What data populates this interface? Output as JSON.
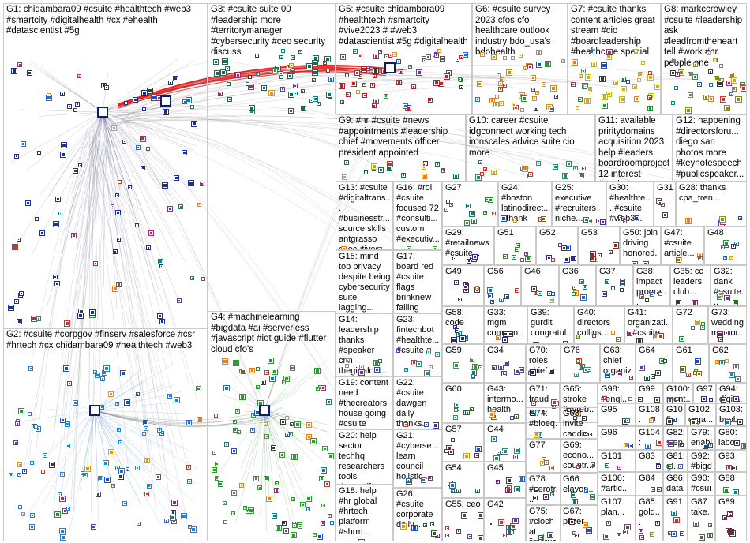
{
  "graph": {
    "groups": [
      {
        "id": "G1",
        "label": "G1: chidambara09 #csuite #healthtech #web3 #smartcity #digitalhealth #cx #ehealth #datascientist #5g",
        "color": "#1f2f8f"
      },
      {
        "id": "G2",
        "label": "G2: #csuite #corpgov #finserv #salesforce #csr #hrtech #cx chidambara09 #healthtech #web3",
        "color": "#2a7fd0"
      },
      {
        "id": "G3",
        "label": "G3: #csuite suite 00 #leadership more #territorymanager #cybersecurity #ceo security discuss",
        "color": "#1a6a55"
      },
      {
        "id": "G4",
        "label": "G4: #machinelearning #bigdata #ai #serverless #javascript #iot guide #flutter cloud cfo's",
        "color": "#2aa02a"
      },
      {
        "id": "G5",
        "label": "G5: #csuite chidambara09 #healthtech #smartcity #vive2023 # #web3 #datascientist #5g #digitalhealth",
        "color": "#c0202a"
      },
      {
        "id": "G6",
        "label": "G6: #csuite survey 2023 cfos cfo healthcare outlook industry bdo_usa's bdohealth",
        "color": "#d08a20"
      },
      {
        "id": "G7",
        "label": "G7: #csuite thanks content articles great stream #cio #boardleadership #healthcare special",
        "color": "#c8b020"
      },
      {
        "id": "G8",
        "label": "G8: markccrowley #csuite #leadership ask #leadfromtheheart tell #work #hr people one",
        "color": "#8a8a20"
      },
      {
        "id": "G9",
        "label": "G9: #hr #csuite #news #appointments #leadership chief #movements officer president appointed",
        "color": "#1a6a55"
      },
      {
        "id": "G10",
        "label": "G10: career #csuite idgconnect working tech ironscales advice suite cio more",
        "color": "#2a8a6a"
      },
      {
        "id": "G11",
        "label": "G11: available priritydomains acquisition 2023 help #leaders boardroomproject 12 interest #csuite",
        "color": "#5a3aa0"
      },
      {
        "id": "G12",
        "label": "G12: happening #directorsforu... diego san photos more #keynotespeech #publicspeaker...",
        "color": "#a02a80"
      },
      {
        "id": "G13",
        "label": "G13: #csuite #digitaltrans... #businesstr... source skills antgrasso executives...",
        "color": "#2a6ab0"
      },
      {
        "id": "G14",
        "label": "G14: leadership thanks #speaker cnn theginalord...",
        "color": "#8a8a8a"
      },
      {
        "id": "G15",
        "label": "G15: mind top privacy despite being cybersecurity suite lagging...",
        "color": "#a03030"
      },
      {
        "id": "G16",
        "label": "G16: #roi #csuite focused 72 #consulti... custom #executiv...",
        "color": "#3a8a3a"
      },
      {
        "id": "G17",
        "label": "G17: board red #csuite flags brinknew failing reveal...",
        "color": "#9a2a2a"
      },
      {
        "id": "G18",
        "label": "G18: help #hr global #hrtech platform #shrm...",
        "color": "#3a5aa0"
      },
      {
        "id": "G19",
        "label": "G19: content need #thecreators house going #csuite mine...",
        "color": "#6a6a2a"
      },
      {
        "id": "G20",
        "label": "G20: help sector techhq researchers tools demystify...",
        "color": "#2a6a8a"
      },
      {
        "id": "G21",
        "label": "G21: #cyberse... learn council holistic...",
        "color": "#8a2a8a"
      },
      {
        "id": "G22",
        "label": "G22: #csuite dawgen daily thanks...",
        "color": "#3a3a8a"
      },
      {
        "id": "G23",
        "label": "G23: fintechbot #healthte... #csuite",
        "color": "#2a8a8a"
      },
      {
        "id": "G24",
        "label": "G24: #boston latinodirect... thank",
        "color": "#8a5a2a"
      },
      {
        "id": "G25",
        "label": "G25: executive #recruiters niche...",
        "color": "#5a2a8a"
      },
      {
        "id": "G26",
        "label": "G26: #csuite corporate daily...",
        "color": "#2a5a2a"
      },
      {
        "id": "G27",
        "label": "G27",
        "color": "#2a8a2a"
      },
      {
        "id": "G28",
        "label": "G28: thanks cpa_tren...",
        "color": "#8a8a2a"
      },
      {
        "id": "G29",
        "label": "G29: #retailnews #csuite...",
        "color": "#2a2a8a"
      },
      {
        "id": "G30",
        "label": "G30: #healthte... #csuite #web3...",
        "color": "#3a3aa0"
      },
      {
        "id": "G31",
        "label": "G31",
        "color": "#6a3a2a"
      },
      {
        "id": "G32",
        "label": "G32: dank #csuite...",
        "color": "#2a6a2a"
      },
      {
        "id": "G33",
        "label": "G33: mgm compan...",
        "color": "#2a2a6a"
      },
      {
        "id": "G34",
        "label": "G34",
        "color": "#4a4aa0"
      },
      {
        "id": "G35",
        "label": "G35: cc leaders club...",
        "color": "#8a2a5a"
      },
      {
        "id": "G36",
        "label": "G36",
        "color": "#2a8a4a"
      },
      {
        "id": "G37",
        "label": "G37",
        "color": "#4a2a8a"
      },
      {
        "id": "G38",
        "label": "G38: impact progra...",
        "color": "#6a6a6a"
      },
      {
        "id": "G39",
        "label": "G39: gurdit congratul... position...",
        "color": "#2a4a8a"
      },
      {
        "id": "G40",
        "label": "G40: directors collins...",
        "color": "#5a8a2a"
      },
      {
        "id": "G41",
        "label": "G41: organizati... #csuite...",
        "color": "#8a4a2a"
      },
      {
        "id": "G42",
        "label": "G42",
        "color": "#2a6a6a"
      },
      {
        "id": "G43",
        "label": "G43: intermo... health",
        "color": "#4a6a2a"
      },
      {
        "id": "G44",
        "label": "G44",
        "color": "#2a8a6a"
      },
      {
        "id": "G45",
        "label": "G45",
        "color": "#6a2a6a"
      },
      {
        "id": "G46",
        "label": "G46",
        "color": "#2a4a6a"
      },
      {
        "id": "G47",
        "label": "G47: #csuite article...",
        "color": "#8a6a2a"
      },
      {
        "id": "G48",
        "label": "G48",
        "color": "#2a6a8a"
      },
      {
        "id": "G49",
        "label": "G49",
        "color": "#4a2a6a"
      },
      {
        "id": "G50",
        "label": "G50: join driving honored...",
        "color": "#6a4a2a"
      },
      {
        "id": "G51",
        "label": "G51",
        "color": "#2a8a2a"
      },
      {
        "id": "G52",
        "label": "G52",
        "color": "#2a2a8a"
      },
      {
        "id": "G53",
        "label": "G53",
        "color": "#8a2a2a"
      },
      {
        "id": "G54",
        "label": "G54",
        "color": "#2a6a4a"
      },
      {
        "id": "G55",
        "label": "G55: ceo",
        "color": "#4a4a4a"
      },
      {
        "id": "G56",
        "label": "G56",
        "color": "#2a4aa0"
      },
      {
        "id": "G57",
        "label": "G57",
        "color": "#6a2a4a"
      },
      {
        "id": "G58",
        "label": "G58: code",
        "color": "#2a2a6a"
      },
      {
        "id": "G59",
        "label": "G59",
        "color": "#4a8a4a"
      },
      {
        "id": "G60",
        "label": "G60",
        "color": "#2a6a2a"
      },
      {
        "id": "G61",
        "label": "G61",
        "color": "#6a6a2a"
      },
      {
        "id": "G62",
        "label": "G62",
        "color": "#2a8a8a"
      },
      {
        "id": "G63",
        "label": "G63: chief organiz...",
        "color": "#8a2a6a"
      },
      {
        "id": "G64",
        "label": "G64",
        "color": "#2a4a4a"
      },
      {
        "id": "G65",
        "label": "G65: stroke #syreb...",
        "color": "#6a2a2a"
      },
      {
        "id": "G66",
        "label": "G66: elavon...",
        "color": "#2a6a6a"
      },
      {
        "id": "G67",
        "label": "G67: pfizer",
        "color": "#4a2a2a"
      },
      {
        "id": "G68",
        "label": "G68: invite caddie...",
        "color": "#2a4a2a"
      },
      {
        "id": "G69",
        "label": "G69: econo... countr...",
        "color": "#6a4a6a"
      },
      {
        "id": "G70",
        "label": "G70: roles chief...",
        "color": "#2a2a4a"
      },
      {
        "id": "G71",
        "label": "G71: fraud",
        "color": "#8a4a4a"
      },
      {
        "id": "G72",
        "label": "G72",
        "color": "#2a8a4a"
      },
      {
        "id": "G73",
        "label": "G73: wedding memor...",
        "color": "#6a2a6a"
      },
      {
        "id": "G74",
        "label": "G74: #bioeq... sanofi...",
        "color": "#2a6a8a"
      },
      {
        "id": "G75",
        "label": "G75: #ciochat jimcrus...",
        "color": "#4a4a8a"
      },
      {
        "id": "G76",
        "label": "G76",
        "color": "#2a8a6a"
      },
      {
        "id": "G77",
        "label": "G77",
        "color": "#8a6a4a"
      },
      {
        "id": "G78",
        "label": "G78: #zerotr...",
        "color": "#4a2a4a"
      },
      {
        "id": "G79",
        "label": "G79: enabl...",
        "color": "#2a4a6a"
      },
      {
        "id": "G80",
        "label": "G80: labor",
        "color": "#6a6a4a"
      },
      {
        "id": "G81",
        "label": "G81: gt...",
        "color": "#2a6a4a"
      },
      {
        "id": "G82",
        "label": "G82: stepp...",
        "color": "#4a2a6a"
      },
      {
        "id": "G83",
        "label": "G83",
        "color": "#2a2a8a"
      },
      {
        "id": "G84",
        "label": "G84",
        "color": "#6a4a2a"
      },
      {
        "id": "G85",
        "label": "G85: gold...",
        "color": "#8a8a2a"
      },
      {
        "id": "G86",
        "label": "G86: data...",
        "color": "#2a4a8a"
      },
      {
        "id": "G87",
        "label": "G87: take...",
        "color": "#4a6a4a"
      },
      {
        "id": "G88",
        "label": "G88",
        "color": "#2a8a2a"
      },
      {
        "id": "G89",
        "label": "G89",
        "color": "#6a2a4a"
      },
      {
        "id": "G90",
        "label": "G90: #csui...",
        "color": "#2a6a6a"
      },
      {
        "id": "G91",
        "label": "G91",
        "color": "#4a4a6a"
      },
      {
        "id": "G92",
        "label": "G92: #bigd...",
        "color": "#6a6a8a"
      },
      {
        "id": "G93",
        "label": "G93",
        "color": "#2a4a2a"
      },
      {
        "id": "G94",
        "label": "G94: digita...",
        "color": "#4a2a8a"
      },
      {
        "id": "G95",
        "label": "G95",
        "color": "#2a6a2a"
      },
      {
        "id": "G96",
        "label": "G96",
        "color": "#6a4a4a"
      },
      {
        "id": "G97",
        "label": "G97",
        "color": "#2a2a6a"
      },
      {
        "id": "G98",
        "label": "G98: #engl...",
        "color": "#4a8a2a"
      },
      {
        "id": "G99",
        "label": "G99",
        "color": "#2a4a4a"
      },
      {
        "id": "G100",
        "label": "G100: mont...",
        "color": "#6a2a2a"
      },
      {
        "id": "G101",
        "label": "G101",
        "color": "#2a8a8a"
      },
      {
        "id": "G102",
        "label": "G102: orga...",
        "color": "#4a4a2a"
      },
      {
        "id": "G103",
        "label": "G103: bspb...",
        "color": "#2a6a8a"
      },
      {
        "id": "G104",
        "label": "G104: join...",
        "color": "#6a6a2a"
      },
      {
        "id": "G105",
        "label": "G105",
        "color": "#2a2a4a"
      },
      {
        "id": "G106",
        "label": "G106: #artic...",
        "color": "#4a6a6a"
      },
      {
        "id": "G107",
        "label": "G107: plan...",
        "color": "#6a4a6a"
      },
      {
        "id": "G108",
        "label": "G108: #sas...",
        "color": "#2a4a6a"
      }
    ]
  }
}
